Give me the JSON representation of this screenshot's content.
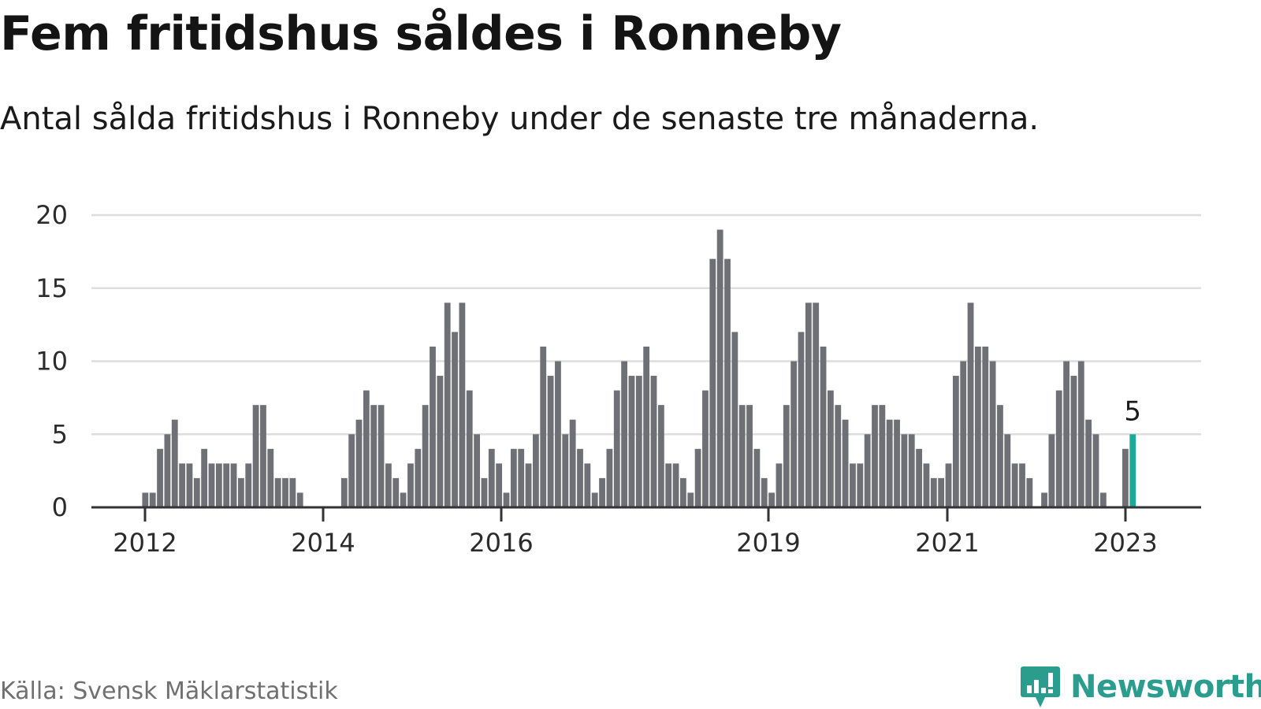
{
  "title": "Fem fritidshus såldes i Ronneby",
  "subtitle": "Antal sålda fritidshus i Ronneby under de senaste tre månaderna.",
  "source": "Källa: Svensk Mäklarstatistik",
  "logo": {
    "text": "Newsworthy",
    "icon": "newsworthy-bar-chart-icon"
  },
  "colors": {
    "bar": "#6f6f76",
    "highlight": "#1aa99b",
    "grid": "#dddddd",
    "axis": "#333333",
    "logo": "#2a9d8f"
  },
  "chart_data": {
    "type": "bar",
    "ylim": [
      0,
      20
    ],
    "yticks": [
      0,
      5,
      10,
      15,
      20
    ],
    "xticks": [
      "2012",
      "2014",
      "2016",
      "2019",
      "2021",
      "2023"
    ],
    "grid": true,
    "highlight_label": "5",
    "values": [
      0,
      0,
      0,
      0,
      0,
      0,
      0,
      1,
      1,
      4,
      5,
      6,
      3,
      3,
      2,
      4,
      3,
      3,
      3,
      3,
      2,
      3,
      7,
      7,
      4,
      2,
      2,
      2,
      1,
      0,
      0,
      0,
      0,
      0,
      2,
      5,
      6,
      8,
      7,
      7,
      3,
      2,
      1,
      3,
      4,
      7,
      11,
      9,
      14,
      12,
      14,
      8,
      5,
      2,
      4,
      3,
      1,
      4,
      4,
      3,
      5,
      11,
      9,
      10,
      5,
      6,
      4,
      3,
      1,
      2,
      4,
      8,
      10,
      9,
      9,
      11,
      9,
      7,
      3,
      3,
      2,
      1,
      4,
      8,
      17,
      19,
      17,
      12,
      7,
      7,
      4,
      2,
      1,
      3,
      7,
      10,
      12,
      14,
      14,
      11,
      8,
      7,
      6,
      3,
      3,
      5,
      7,
      7,
      6,
      6,
      5,
      5,
      4,
      3,
      2,
      2,
      3,
      9,
      10,
      14,
      11,
      11,
      10,
      7,
      5,
      3,
      3,
      2,
      0,
      1,
      5,
      8,
      10,
      9,
      10,
      6,
      5,
      1,
      0,
      0,
      4,
      5
    ]
  }
}
